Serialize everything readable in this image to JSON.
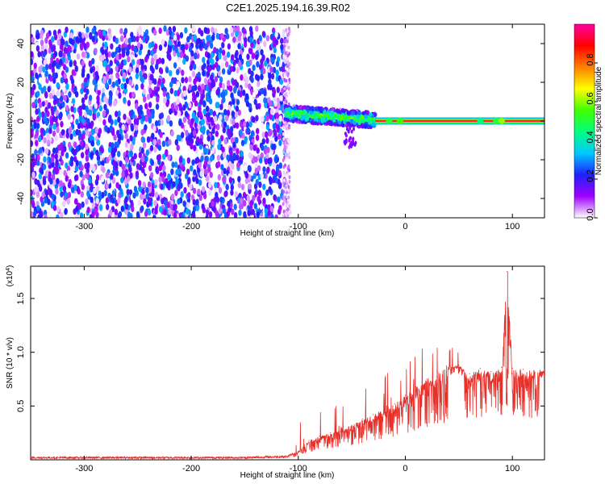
{
  "title": "C2E1.2025.194.16.39.R02",
  "colorbar": {
    "label": "Normalized spectral amplitude",
    "range": [
      0.0,
      1.0
    ],
    "ticks": [
      "0.0",
      "0.2",
      "0.4",
      "0.6",
      "0.8"
    ],
    "tick_values": [
      0.0,
      0.2,
      0.4,
      0.6,
      0.8
    ],
    "colors": [
      "#ffffff",
      "#a000ff",
      "#2020ff",
      "#00c8ff",
      "#00ff80",
      "#40ff00",
      "#ffff00",
      "#ff8000",
      "#ff0000",
      "#ff00a0"
    ]
  },
  "chart_data": [
    {
      "type": "heatmap",
      "xlabel": "Height of straight line (km)",
      "ylabel": "Frequency (Hz)",
      "xlim": [
        -350,
        130
      ],
      "ylim": [
        -50,
        50
      ],
      "x_ticks": [
        -300,
        -200,
        -100,
        0,
        100
      ],
      "x_tick_labels": [
        "-300",
        "-200",
        "-100",
        "0",
        "100"
      ],
      "y_ticks": [
        -40,
        -20,
        0,
        20,
        40
      ],
      "y_tick_labels": [
        "-40",
        "-20",
        "0",
        "20",
        "40"
      ],
      "regions": [
        {
          "name": "noise",
          "x_range": [
            -350,
            -112
          ],
          "freq_range": [
            -50,
            48
          ],
          "amplitude": 0.15
        },
        {
          "name": "signal cluster",
          "x_range": [
            -112,
            -28
          ],
          "freq_range": [
            -2,
            8
          ],
          "amplitude": 0.45
        },
        {
          "name": "carrier line",
          "x_range": [
            -28,
            130
          ],
          "freq_range": [
            -0.5,
            0.5
          ],
          "amplitude": 0.95
        }
      ]
    },
    {
      "type": "line",
      "xlabel": "Height of straight line (km)",
      "ylabel": "SNR (10 * v/v)",
      "yscale_label": "(x10",
      "yscale_exponent": "4",
      "yscale_suffix": ")",
      "xlim": [
        -350,
        130
      ],
      "ylim": [
        0.0,
        1.8
      ],
      "x_ticks": [
        -300,
        -200,
        -100,
        0,
        100
      ],
      "x_tick_labels": [
        "-300",
        "-200",
        "-100",
        "0",
        "100"
      ],
      "y_ticks": [
        0.5,
        1.0,
        1.5
      ],
      "y_tick_labels": [
        "0.5",
        "1.0",
        "1.5"
      ],
      "color": "#e8302a",
      "series": [
        {
          "x": [
            -350,
            -300,
            -250,
            -200,
            -150,
            -110,
            -100,
            -90,
            -80,
            -70,
            -60,
            -50,
            -40,
            -30,
            -20,
            -10,
            0,
            10,
            20,
            30,
            40,
            50,
            60,
            70,
            80,
            90,
            95,
            100,
            110,
            120,
            130
          ],
          "y": [
            0.02,
            0.02,
            0.02,
            0.02,
            0.02,
            0.03,
            0.08,
            0.18,
            0.22,
            0.25,
            0.28,
            0.32,
            0.38,
            0.42,
            0.48,
            0.52,
            0.6,
            0.68,
            0.75,
            0.82,
            0.86,
            0.88,
            0.8,
            0.85,
            0.82,
            0.86,
            1.75,
            0.85,
            0.84,
            0.83,
            0.84
          ]
        }
      ]
    }
  ]
}
